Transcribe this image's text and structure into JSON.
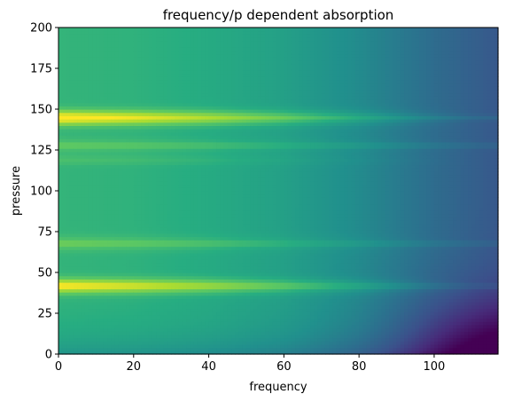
{
  "chart_data": {
    "type": "heatmap",
    "title": "frequency/p dependent absorption",
    "xlabel": "frequency",
    "ylabel": "pressure",
    "xlim": [
      0,
      117
    ],
    "ylim": [
      0,
      200
    ],
    "x_ticks": [
      0,
      20,
      40,
      60,
      80,
      100
    ],
    "y_ticks": [
      0,
      25,
      50,
      75,
      100,
      125,
      150,
      175,
      200
    ],
    "colormap": "viridis",
    "grid": false,
    "value_range": [
      0,
      1
    ],
    "description_of_values": {
      "baseline_by_frequency": [
        {
          "frequency": 0,
          "value": 0.66
        },
        {
          "frequency": 20,
          "value": 0.65
        },
        {
          "frequency": 40,
          "value": 0.62
        },
        {
          "frequency": 60,
          "value": 0.57
        },
        {
          "frequency": 80,
          "value": 0.48
        },
        {
          "frequency": 100,
          "value": 0.36
        },
        {
          "frequency": 117,
          "value": 0.28
        }
      ],
      "bright_bands": [
        {
          "pressure": 145,
          "peak_value": 1.0
        },
        {
          "pressure": 42,
          "peak_value": 0.97
        },
        {
          "pressure": 68,
          "peak_value": 0.74
        },
        {
          "pressure": 128,
          "peak_value": 0.72
        }
      ],
      "dark_corner": {
        "frequency": 117,
        "pressure": 0,
        "value": 0.0
      }
    }
  }
}
